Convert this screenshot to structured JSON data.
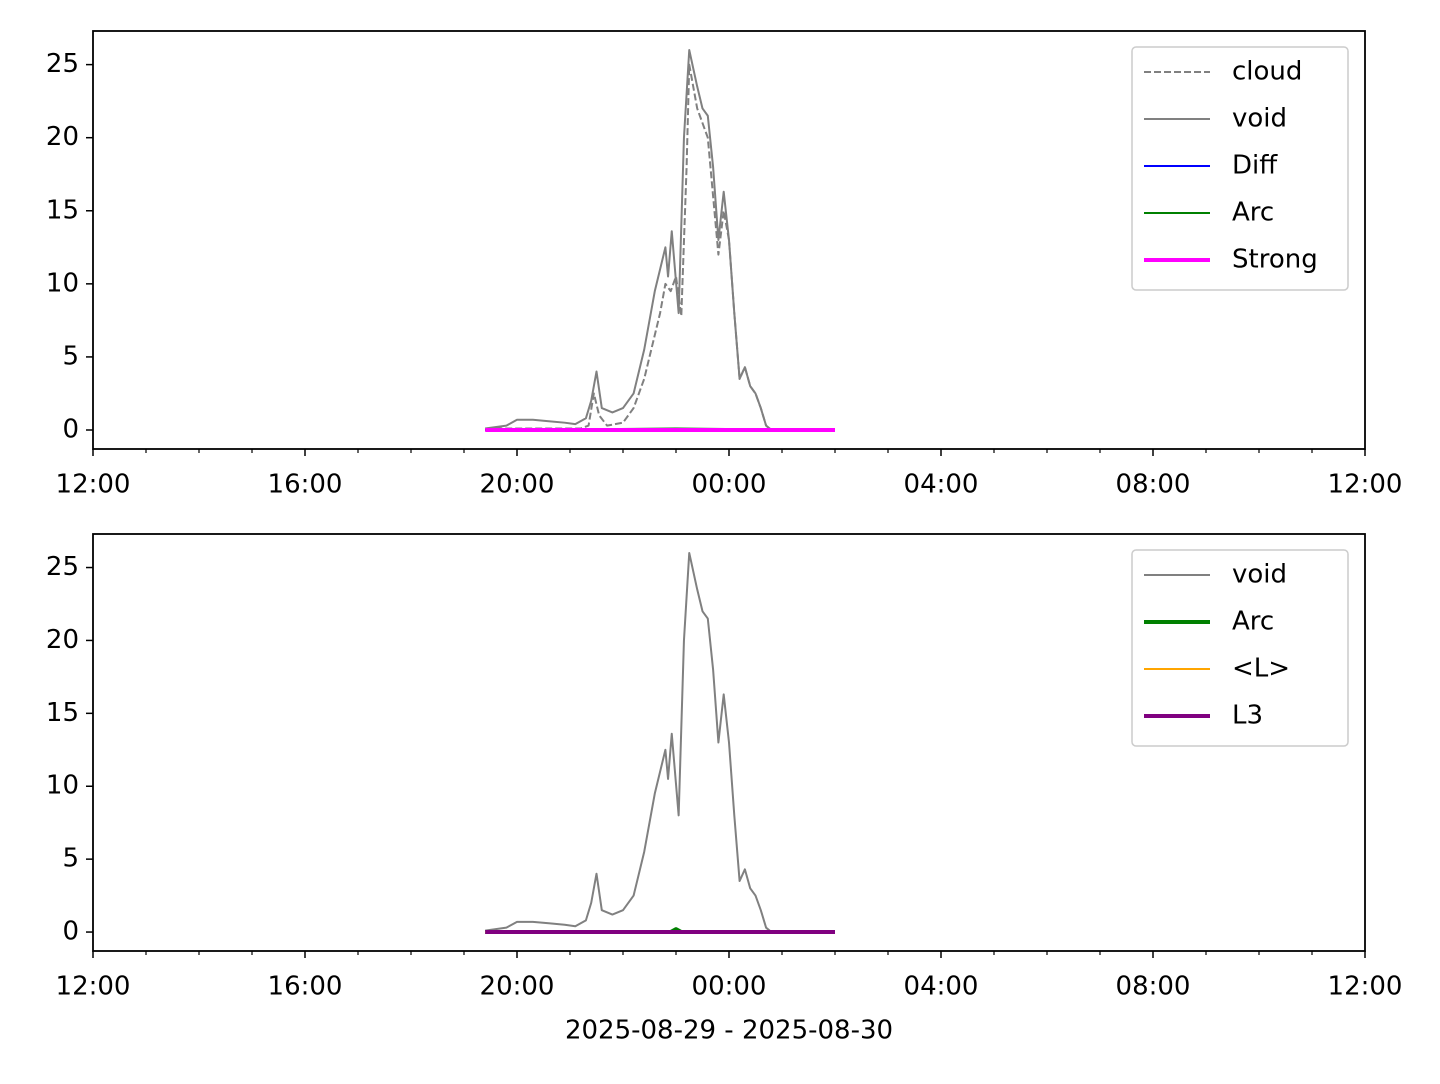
{
  "chart_data": [
    {
      "type": "line",
      "xlim": [
        12,
        36
      ],
      "xticks": [
        {
          "value": 12,
          "label": "12:00"
        },
        {
          "value": 16,
          "label": "16:00"
        },
        {
          "value": 20,
          "label": "20:00"
        },
        {
          "value": 24,
          "label": "00:00"
        },
        {
          "value": 28,
          "label": "04:00"
        },
        {
          "value": 32,
          "label": "08:00"
        },
        {
          "value": 36,
          "label": "12:00"
        }
      ],
      "xminorticks": [
        13,
        14,
        15,
        17,
        18,
        19,
        21,
        22,
        23,
        25,
        26,
        27,
        29,
        30,
        31,
        33,
        34,
        35
      ],
      "ylim": [
        -1.3,
        27.3
      ],
      "yticks": [
        0,
        5,
        10,
        15,
        20,
        25
      ],
      "legend": "upper right",
      "series": [
        {
          "name": "cloud",
          "color": "#808080",
          "dash": true,
          "width": 2,
          "x": [
            19.4,
            19.8,
            20.0,
            21.2,
            21.35,
            21.45,
            21.55,
            21.7,
            22.0,
            22.2,
            22.4,
            22.6,
            22.7,
            22.8,
            22.9,
            23.0,
            23.1,
            23.2,
            23.25,
            23.4,
            23.5,
            23.6,
            23.7,
            23.8,
            23.9,
            24.0,
            24.1,
            24.2,
            24.3,
            24.4,
            24.5,
            24.6,
            24.7,
            24.8,
            26.0
          ],
          "values": [
            0.1,
            0.1,
            0.1,
            0.1,
            0.3,
            2.5,
            1.0,
            0.3,
            0.5,
            1.5,
            3.5,
            6.5,
            8.0,
            10.0,
            9.5,
            10.5,
            7.8,
            18.0,
            25.0,
            22.0,
            21.0,
            20.0,
            16.0,
            12.0,
            15.0,
            13.0,
            8.0,
            3.5,
            4.3,
            3.0,
            2.5,
            1.5,
            0.3,
            0.0,
            0.0
          ]
        },
        {
          "name": "void",
          "color": "#808080",
          "width": 2,
          "x": [
            19.4,
            19.8,
            20.0,
            20.3,
            20.6,
            20.9,
            21.1,
            21.3,
            21.4,
            21.5,
            21.6,
            21.8,
            22.0,
            22.2,
            22.4,
            22.6,
            22.7,
            22.8,
            22.85,
            22.92,
            23.05,
            23.15,
            23.25,
            23.4,
            23.5,
            23.6,
            23.7,
            23.8,
            23.9,
            24.0,
            24.1,
            24.2,
            24.3,
            24.4,
            24.5,
            24.6,
            24.7,
            24.8,
            26.0
          ],
          "values": [
            0.1,
            0.3,
            0.7,
            0.7,
            0.6,
            0.5,
            0.4,
            0.8,
            2.0,
            4.0,
            1.5,
            1.2,
            1.5,
            2.5,
            5.5,
            9.5,
            11.0,
            12.5,
            10.5,
            13.6,
            8.0,
            20.0,
            26.0,
            23.5,
            22.0,
            21.5,
            18.0,
            13.0,
            16.3,
            13.0,
            8.0,
            3.5,
            4.3,
            3.0,
            2.5,
            1.5,
            0.3,
            0.0,
            0.0
          ]
        },
        {
          "name": "Diff",
          "color": "#0000ff",
          "width": 2,
          "x": [
            19.4,
            26.0
          ],
          "values": [
            0,
            0
          ]
        },
        {
          "name": "Arc",
          "color": "#008000",
          "width": 2,
          "x": [
            19.4,
            23.0,
            26.0
          ],
          "values": [
            0,
            0.1,
            0
          ]
        },
        {
          "name": "Strong",
          "color": "#ff00ff",
          "width": 4,
          "x": [
            19.4,
            26.0
          ],
          "values": [
            0,
            0
          ]
        }
      ]
    },
    {
      "type": "line",
      "xlabel": "2025-08-29 - 2025-08-30",
      "xlim": [
        12,
        36
      ],
      "xticks": [
        {
          "value": 12,
          "label": "12:00"
        },
        {
          "value": 16,
          "label": "16:00"
        },
        {
          "value": 20,
          "label": "20:00"
        },
        {
          "value": 24,
          "label": "00:00"
        },
        {
          "value": 28,
          "label": "04:00"
        },
        {
          "value": 32,
          "label": "08:00"
        },
        {
          "value": 36,
          "label": "12:00"
        }
      ],
      "xminorticks": [
        13,
        14,
        15,
        17,
        18,
        19,
        21,
        22,
        23,
        25,
        26,
        27,
        29,
        30,
        31,
        33,
        34,
        35
      ],
      "ylim": [
        -1.3,
        27.3
      ],
      "yticks": [
        0,
        5,
        10,
        15,
        20,
        25
      ],
      "legend": "upper right",
      "series": [
        {
          "name": "void",
          "color": "#808080",
          "width": 2,
          "x": [
            19.4,
            19.8,
            20.0,
            20.3,
            20.6,
            20.9,
            21.1,
            21.3,
            21.4,
            21.5,
            21.6,
            21.8,
            22.0,
            22.2,
            22.4,
            22.6,
            22.7,
            22.8,
            22.85,
            22.92,
            23.05,
            23.15,
            23.25,
            23.4,
            23.5,
            23.6,
            23.7,
            23.8,
            23.9,
            24.0,
            24.1,
            24.2,
            24.3,
            24.4,
            24.5,
            24.6,
            24.7,
            24.8,
            26.0
          ],
          "values": [
            0.1,
            0.3,
            0.7,
            0.7,
            0.6,
            0.5,
            0.4,
            0.8,
            2.0,
            4.0,
            1.5,
            1.2,
            1.5,
            2.5,
            5.5,
            9.5,
            11.0,
            12.5,
            10.5,
            13.6,
            8.0,
            20.0,
            26.0,
            23.5,
            22.0,
            21.5,
            18.0,
            13.0,
            16.3,
            13.0,
            8.0,
            3.5,
            4.3,
            3.0,
            2.5,
            1.5,
            0.3,
            0.0,
            0.0
          ]
        },
        {
          "name": "Arc",
          "color": "#008000",
          "width": 4,
          "x": [
            19.4,
            22.9,
            23.0,
            23.1,
            26.0
          ],
          "values": [
            0,
            0,
            0.2,
            0,
            0
          ]
        },
        {
          "name": "<L>",
          "color": "#ffa500",
          "width": 2,
          "x": [
            19.4,
            26.0
          ],
          "values": [
            0,
            0
          ]
        },
        {
          "name": "L3",
          "color": "#800080",
          "width": 4,
          "x": [
            19.4,
            26.0
          ],
          "values": [
            0,
            0
          ]
        }
      ]
    }
  ]
}
